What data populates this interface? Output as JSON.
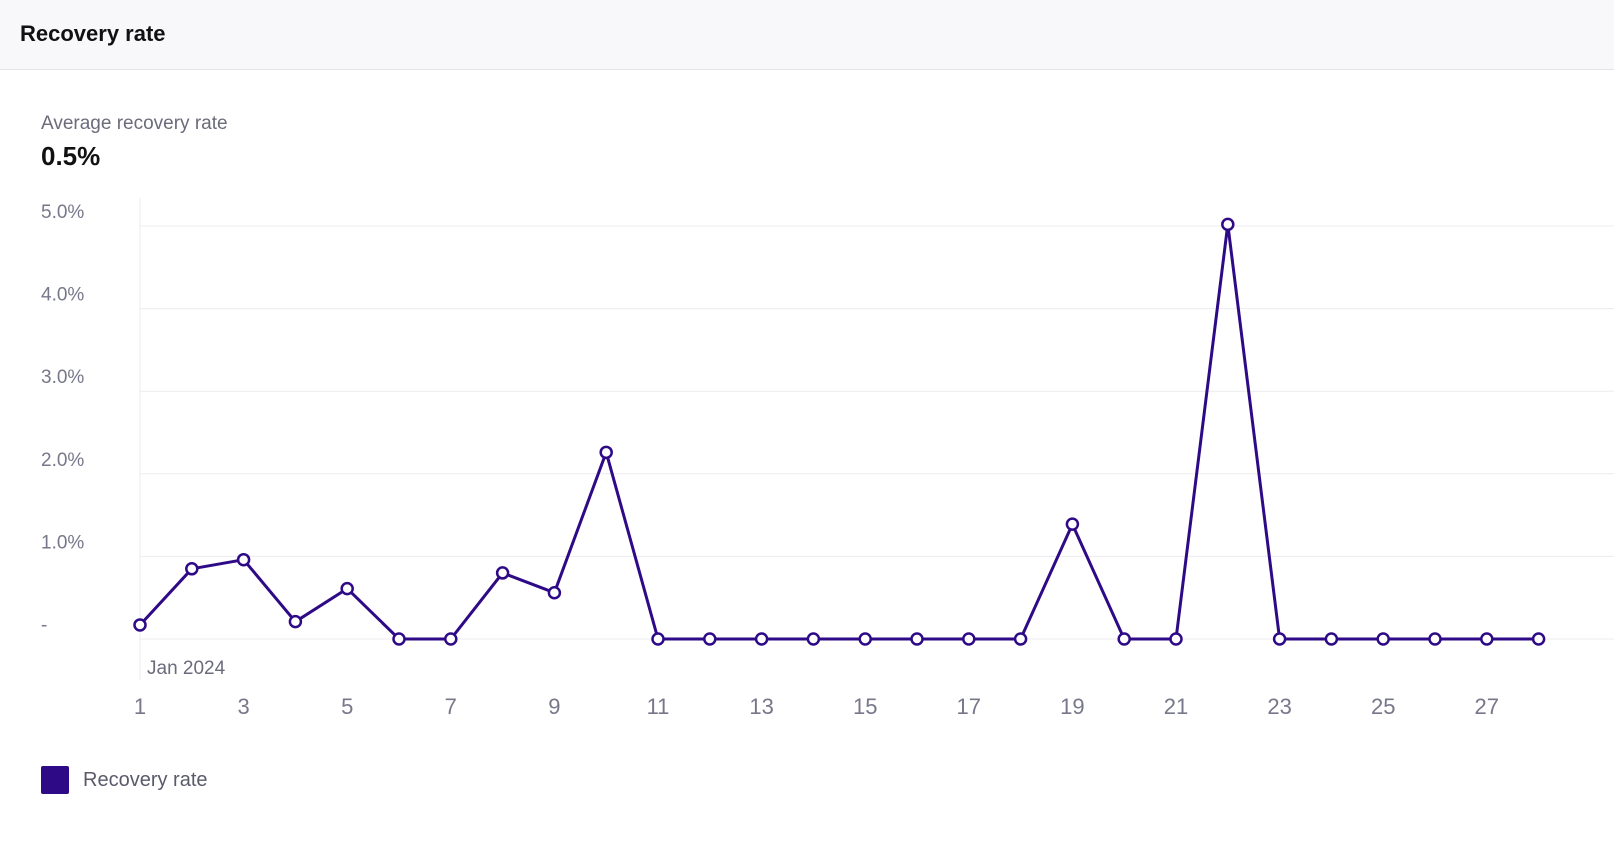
{
  "header": {
    "title": "Recovery rate"
  },
  "summary": {
    "label": "Average recovery rate",
    "value": "0.5%"
  },
  "colors": {
    "series": "#2e0a87",
    "grid": "#ececf0",
    "axis_text": "#77778a"
  },
  "chart_data": {
    "type": "line",
    "period_label": "Jan 2024",
    "x": [
      1,
      2,
      3,
      4,
      5,
      6,
      7,
      8,
      9,
      10,
      11,
      12,
      13,
      14,
      15,
      16,
      17,
      18,
      19,
      20,
      21,
      22,
      23,
      24,
      25,
      26,
      27,
      28
    ],
    "x_tick_labels": [
      "1",
      "3",
      "5",
      "7",
      "9",
      "11",
      "13",
      "15",
      "17",
      "19",
      "21",
      "23",
      "25",
      "27"
    ],
    "y_tick_labels": [
      "-",
      "1.0%",
      "2.0%",
      "3.0%",
      "4.0%",
      "5.0%"
    ],
    "y_tick_values": [
      0,
      1,
      2,
      3,
      4,
      5
    ],
    "ylim": [
      0,
      5
    ],
    "grid": true,
    "legend_position": "bottom-left",
    "series": [
      {
        "name": "Recovery rate",
        "values": [
          0.17,
          0.85,
          0.96,
          0.21,
          0.61,
          0,
          0,
          0.8,
          0.56,
          2.26,
          0,
          0,
          0,
          0,
          0,
          0,
          0,
          0,
          1.39,
          0,
          0,
          5.02,
          0,
          0,
          0,
          0,
          0,
          0
        ]
      }
    ]
  }
}
